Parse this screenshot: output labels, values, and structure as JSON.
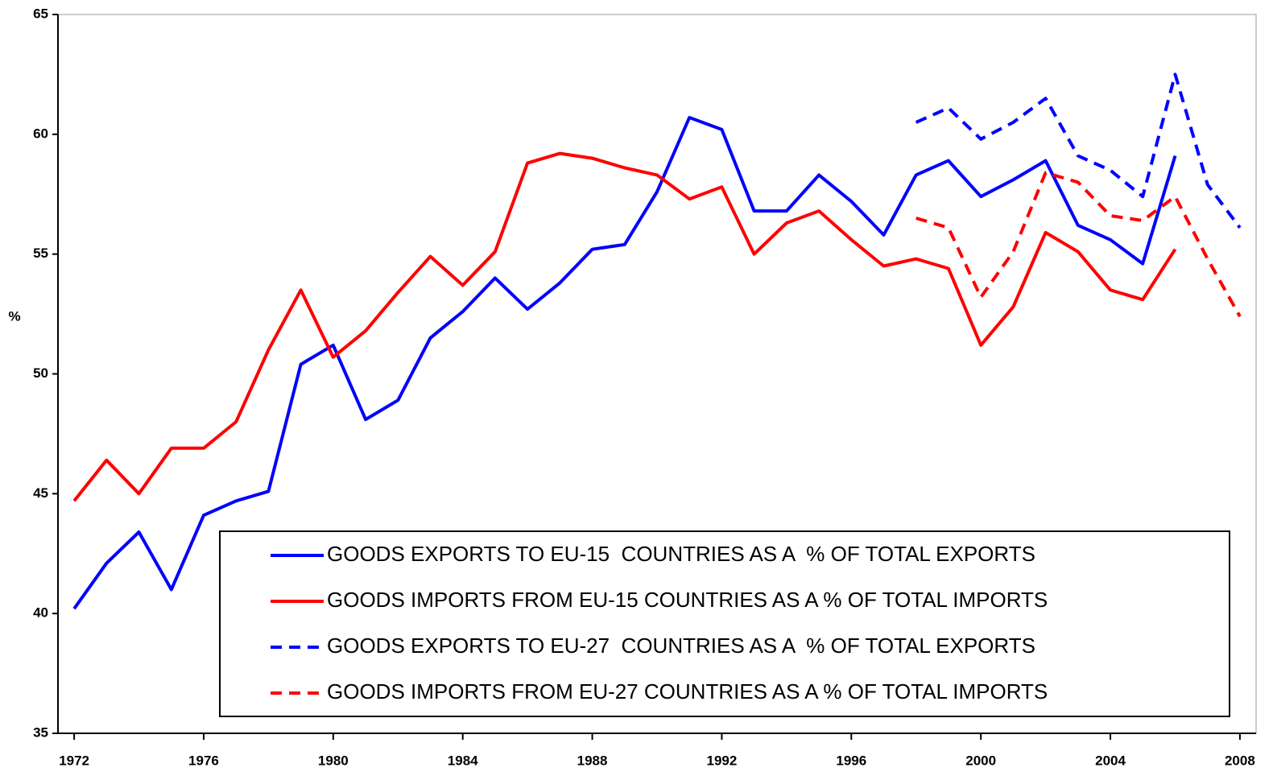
{
  "chart_data": {
    "type": "line",
    "y_label": "%",
    "x": [
      1972,
      1973,
      1974,
      1975,
      1976,
      1977,
      1978,
      1979,
      1980,
      1981,
      1982,
      1983,
      1984,
      1985,
      1986,
      1987,
      1988,
      1989,
      1990,
      1991,
      1992,
      1993,
      1994,
      1995,
      1996,
      1997,
      1998,
      1999,
      2000,
      2001,
      2002,
      2003,
      2004,
      2005,
      2006,
      2007,
      2008
    ],
    "xlim": [
      1971.5,
      2008.5
    ],
    "xticks": [
      1972,
      1976,
      1980,
      1984,
      1988,
      1992,
      1996,
      2000,
      2004,
      2008
    ],
    "ylim": [
      35,
      65
    ],
    "yticks": [
      35,
      40,
      45,
      50,
      55,
      60,
      65
    ],
    "series": [
      {
        "name": "GOODS EXPORTS TO EU-15  COUNTRIES AS A  % OF TOTAL EXPORTS",
        "color": "#0000ff",
        "dashed": false,
        "values": [
          40.2,
          42.1,
          43.4,
          41.0,
          44.1,
          44.7,
          45.1,
          50.4,
          51.2,
          48.1,
          48.9,
          51.5,
          52.6,
          54.0,
          52.7,
          53.8,
          55.2,
          55.4,
          57.6,
          60.7,
          60.2,
          56.8,
          56.8,
          58.3,
          57.2,
          55.8,
          58.3,
          58.9,
          57.4,
          58.1,
          58.9,
          56.2,
          55.6,
          54.6,
          59.1,
          null,
          null
        ]
      },
      {
        "name": "GOODS IMPORTS FROM EU-15 COUNTRIES AS A % OF TOTAL IMPORTS",
        "color": "#ff0000",
        "dashed": false,
        "values": [
          44.7,
          46.4,
          45.0,
          46.9,
          46.9,
          48.0,
          51.0,
          53.5,
          50.7,
          51.8,
          53.4,
          54.9,
          53.7,
          55.1,
          58.8,
          59.2,
          59.0,
          58.6,
          58.3,
          57.3,
          57.8,
          55.0,
          56.3,
          56.8,
          55.6,
          54.5,
          54.8,
          54.4,
          51.2,
          52.8,
          55.9,
          55.1,
          53.5,
          53.1,
          55.2,
          null,
          null
        ]
      },
      {
        "name": "GOODS EXPORTS TO EU-27  COUNTRIES AS A  % OF TOTAL EXPORTS",
        "color": "#0000ff",
        "dashed": true,
        "values": [
          null,
          null,
          null,
          null,
          null,
          null,
          null,
          null,
          null,
          null,
          null,
          null,
          null,
          null,
          null,
          null,
          null,
          null,
          null,
          null,
          null,
          null,
          null,
          null,
          null,
          null,
          60.5,
          61.1,
          59.8,
          60.5,
          61.5,
          59.1,
          58.5,
          57.4,
          62.5,
          57.9,
          56.1
        ]
      },
      {
        "name": "GOODS IMPORTS FROM EU-27 COUNTRIES AS A % OF TOTAL IMPORTS",
        "color": "#ff0000",
        "dashed": true,
        "values": [
          null,
          null,
          null,
          null,
          null,
          null,
          null,
          null,
          null,
          null,
          null,
          null,
          null,
          null,
          null,
          null,
          null,
          null,
          null,
          null,
          null,
          null,
          null,
          null,
          null,
          null,
          56.5,
          56.1,
          53.2,
          55.1,
          58.4,
          58.0,
          56.6,
          56.4,
          57.4,
          54.8,
          52.4
        ]
      }
    ]
  }
}
